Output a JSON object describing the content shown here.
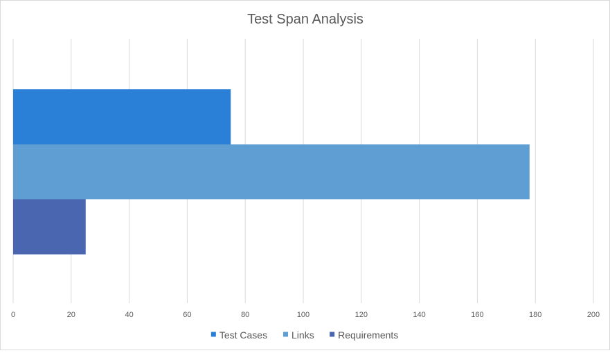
{
  "chart_data": {
    "type": "bar",
    "orientation": "horizontal",
    "title": "Test Span Analysis",
    "xlabel": "",
    "ylabel": "",
    "xlim": [
      0,
      200
    ],
    "x_ticks": [
      0,
      20,
      40,
      60,
      80,
      100,
      120,
      140,
      160,
      180,
      200
    ],
    "grid": true,
    "legend_position": "bottom",
    "series": [
      {
        "name": "Test Cases",
        "value": 75,
        "color": "#2a7fd6"
      },
      {
        "name": "Links",
        "value": 178,
        "color": "#5f9ed3"
      },
      {
        "name": "Requirements",
        "value": 25,
        "color": "#4a66b0"
      }
    ]
  },
  "colors": {
    "gridline": "#d9d9d9",
    "text": "#595959",
    "title": "#595959",
    "frame": "#d9d9d9"
  }
}
